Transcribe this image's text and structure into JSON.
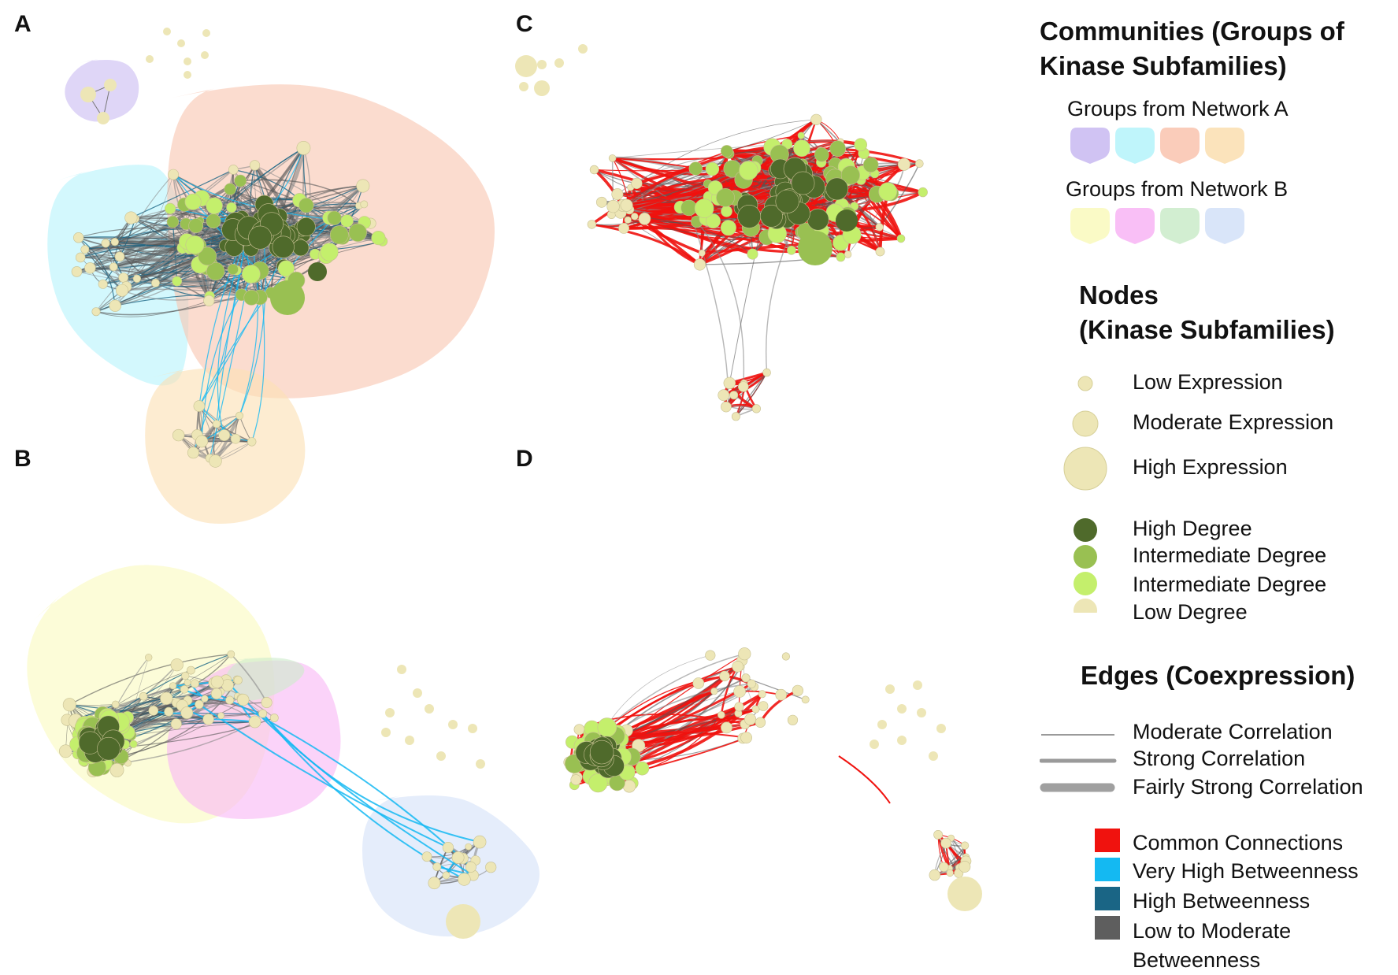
{
  "panels": {
    "a": "A",
    "b": "B",
    "c": "C",
    "d": "D"
  },
  "legend": {
    "communities": {
      "heading_line1": "Communities (Groups of",
      "heading_line2": "Kinase Subfamilies)",
      "network_a_label": "Groups from Network A",
      "network_a_colors": [
        "#cbbdf2",
        "#b8f4fb",
        "#f9c6b2",
        "#fbe0b4"
      ],
      "network_b_label": "Groups from Network B",
      "network_b_colors": [
        "#fafac0",
        "#f8b8f5",
        "#cdeccc",
        "#d5e2f8"
      ]
    },
    "nodes": {
      "heading_line1": "Nodes",
      "heading_line2": "(Kinase Subfamilies)",
      "low_expression": "Low Expression",
      "moderate_expression": "Moderate Expression",
      "high_expression": "High Expression",
      "high_degree": "High Degree",
      "intermediate_degree_1": "Intermediate Degree",
      "intermediate_degree_2": "Intermediate Degree",
      "low_degree": "Low Degree",
      "degree_colors": [
        "#4f6a2b",
        "#99c052",
        "#c4ef6c",
        "#ede6b6"
      ]
    },
    "edges": {
      "heading": "Edges (Coexpression)",
      "moderate": "Moderate Correlation",
      "strong": "Strong Correlation",
      "fairly_strong": "Fairly Strong Correlation",
      "common": "Common Connections",
      "very_high_betweenness": "Very High Betweenness",
      "high_betweenness": "High Betweenness",
      "low_to_moderate_line1": "Low to Moderate",
      "low_to_moderate_line2": "Betweenness",
      "edge_colors": [
        "#f0120e",
        "#14b9f2",
        "#1a6585",
        "#5e5e5e"
      ]
    }
  }
}
